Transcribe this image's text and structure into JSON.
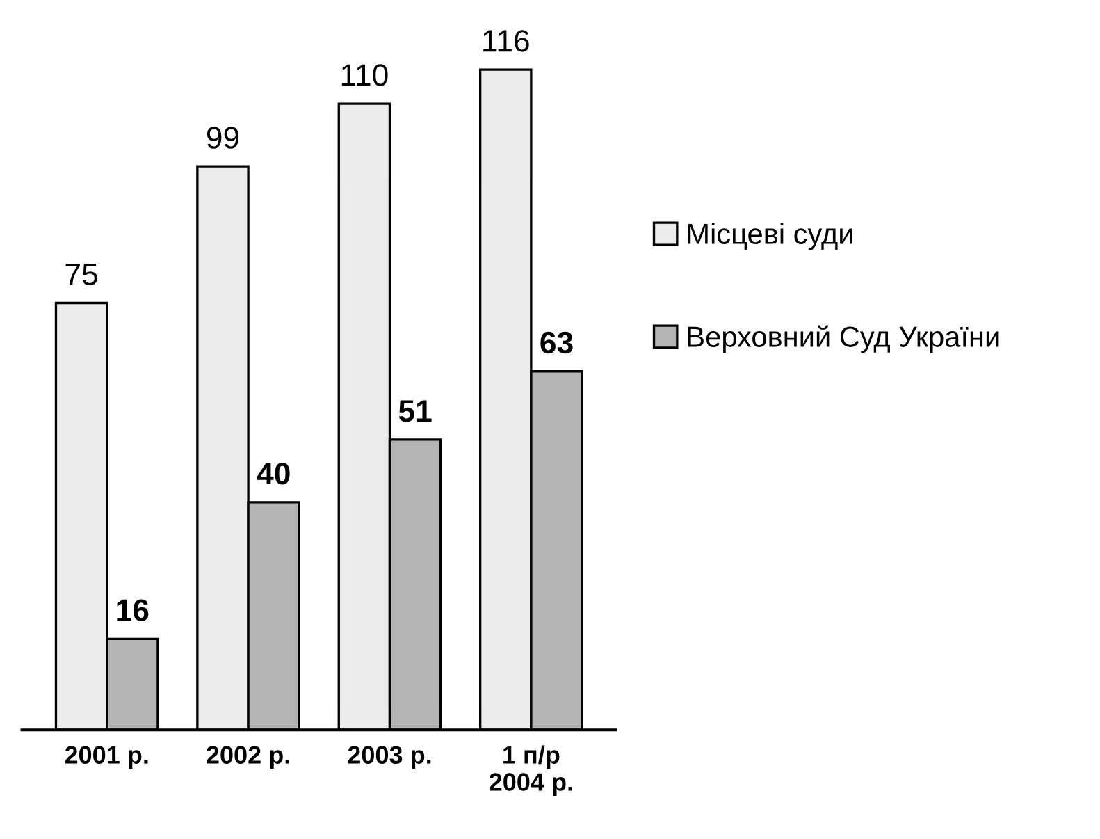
{
  "chart_data": {
    "type": "bar",
    "categories": [
      "2001 р.",
      "2002 р.",
      "2003 р.",
      "1 п/р\n2004 р."
    ],
    "series": [
      {
        "name": "Місцеві суди",
        "color": "#ececec",
        "values": [
          75,
          99,
          110,
          116
        ]
      },
      {
        "name": "Верховний Суд України",
        "color": "#b4b4b4",
        "values": [
          16,
          40,
          51,
          63
        ]
      }
    ],
    "data_labels": true,
    "legend": "right",
    "grid": false
  }
}
